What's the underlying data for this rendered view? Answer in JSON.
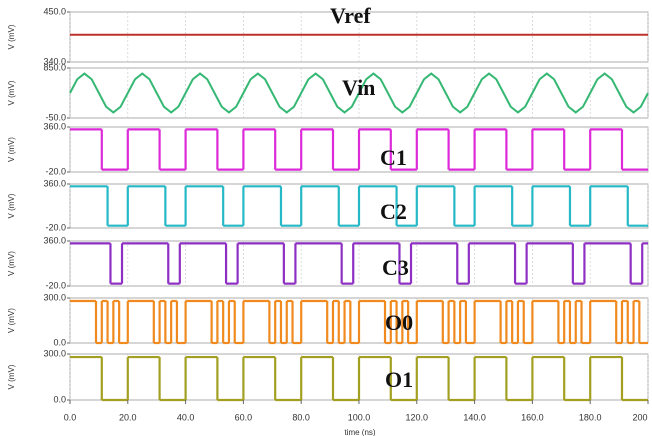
{
  "chart_data": [
    {
      "type": "line",
      "title": "Vref",
      "ylabel": "V (mV)",
      "color": "#c0302a",
      "x": [
        0,
        200
      ],
      "values": [
        400,
        400
      ],
      "xlim": [
        0,
        200
      ],
      "ylim": [
        340,
        450
      ],
      "yticks": [
        {
          "value": 340,
          "label": "340.0"
        },
        {
          "value": 450,
          "label": "450.0"
        }
      ],
      "grid": true
    },
    {
      "type": "line",
      "title": "Vin",
      "ylabel": "V (mV)",
      "color": "#35b873",
      "x": [
        0,
        2.5,
        5,
        7.5,
        10,
        12.5,
        15,
        17.5,
        20,
        22.5,
        25,
        27.5,
        30,
        32.5,
        35,
        37.5,
        40,
        42.5,
        45,
        47.5,
        50,
        52.5,
        55,
        57.5,
        60,
        62.5,
        65,
        67.5,
        70,
        72.5,
        75,
        77.5,
        80,
        82.5,
        85,
        87.5,
        90,
        92.5,
        95,
        97.5,
        100,
        102.5,
        105,
        107.5,
        110,
        112.5,
        115,
        117.5,
        120,
        122.5,
        125,
        127.5,
        130,
        132.5,
        135,
        137.5,
        140,
        142.5,
        145,
        147.5,
        150,
        152.5,
        155,
        157.5,
        160,
        162.5,
        165,
        167.5,
        170,
        172.5,
        175,
        177.5,
        180,
        182.5,
        185,
        187.5,
        190,
        192.5,
        195,
        197.5,
        200
      ],
      "values": [
        400,
        647,
        750,
        647,
        400,
        153,
        50,
        153,
        400,
        647,
        750,
        647,
        400,
        153,
        50,
        153,
        400,
        647,
        750,
        647,
        400,
        153,
        50,
        153,
        400,
        647,
        750,
        647,
        400,
        153,
        50,
        153,
        400,
        647,
        750,
        647,
        400,
        153,
        50,
        153,
        400,
        647,
        750,
        647,
        400,
        153,
        50,
        153,
        400,
        647,
        750,
        647,
        400,
        153,
        50,
        153,
        400,
        647,
        750,
        647,
        400,
        153,
        50,
        153,
        400,
        647,
        750,
        647,
        400,
        153,
        50,
        153,
        400,
        647,
        750,
        647,
        400,
        153,
        50,
        153,
        400
      ],
      "xlim": [
        0,
        200
      ],
      "ylim": [
        -50,
        850
      ],
      "yticks": [
        {
          "value": -50,
          "label": "-50.0"
        },
        {
          "value": 850,
          "label": "850.0"
        }
      ],
      "grid": true
    },
    {
      "type": "step",
      "title": "C1",
      "ylabel": "V (mV)",
      "color": "#dc2ad8",
      "x": [
        0,
        11,
        20,
        31,
        40,
        51,
        60,
        71,
        80,
        91,
        100,
        111,
        120,
        131,
        140,
        151,
        160,
        171,
        180,
        191
      ],
      "values": [
        340,
        0,
        340,
        0,
        340,
        0,
        340,
        0,
        340,
        0,
        340,
        0,
        340,
        0,
        340,
        0,
        340,
        0,
        340,
        0
      ],
      "xlim": [
        0,
        200
      ],
      "ylim": [
        -20,
        360
      ],
      "yticks": [
        {
          "value": -20,
          "label": "-20.0"
        },
        {
          "value": 360,
          "label": "360.0"
        }
      ],
      "grid": true
    },
    {
      "type": "step",
      "title": "C2",
      "ylabel": "V (mV)",
      "color": "#25b8c6",
      "x": [
        0,
        13,
        20,
        33,
        40,
        53,
        60,
        73,
        80,
        93,
        100,
        113,
        120,
        133,
        140,
        153,
        160,
        173,
        180,
        193
      ],
      "values": [
        340,
        0,
        340,
        0,
        340,
        0,
        340,
        0,
        340,
        0,
        340,
        0,
        340,
        0,
        340,
        0,
        340,
        0,
        340,
        0
      ],
      "xlim": [
        0,
        200
      ],
      "ylim": [
        -20,
        360
      ],
      "yticks": [
        {
          "value": -20,
          "label": "-20.0"
        },
        {
          "value": 360,
          "label": "360.0"
        }
      ],
      "grid": true
    },
    {
      "type": "step",
      "title": "C3",
      "ylabel": "V (mV)",
      "color": "#8e2fc4",
      "x": [
        0,
        14,
        18,
        34,
        38,
        54,
        58,
        74,
        78,
        94,
        98,
        114,
        118,
        134,
        138,
        154,
        158,
        174,
        178,
        194,
        198
      ],
      "values": [
        340,
        0,
        340,
        0,
        340,
        0,
        340,
        0,
        340,
        0,
        340,
        0,
        340,
        0,
        340,
        0,
        340,
        0,
        340,
        0,
        340
      ],
      "xlim": [
        0,
        200
      ],
      "ylim": [
        -20,
        360
      ],
      "yticks": [
        {
          "value": -20,
          "label": "-20.0"
        },
        {
          "value": 360,
          "label": "360.0"
        }
      ],
      "grid": true
    },
    {
      "type": "step",
      "title": "O0",
      "ylabel": "V (mV)",
      "color": "#f08a1e",
      "x": [
        0,
        9,
        11,
        13,
        15,
        17,
        20,
        29,
        31,
        33,
        35,
        37,
        40,
        49,
        51,
        53,
        55,
        57,
        60,
        69,
        71,
        73,
        75,
        77,
        80,
        89,
        91,
        93,
        95,
        97,
        100,
        109,
        111,
        113,
        115,
        117,
        120,
        129,
        131,
        133,
        135,
        137,
        140,
        149,
        151,
        153,
        155,
        157,
        160,
        169,
        171,
        173,
        175,
        177,
        180,
        189,
        191,
        193,
        195,
        197
      ],
      "values": [
        280,
        0,
        280,
        0,
        280,
        0,
        280,
        0,
        280,
        0,
        280,
        0,
        280,
        0,
        280,
        0,
        280,
        0,
        280,
        0,
        280,
        0,
        280,
        0,
        280,
        0,
        280,
        0,
        280,
        0,
        280,
        0,
        280,
        0,
        280,
        0,
        280,
        0,
        280,
        0,
        280,
        0,
        280,
        0,
        280,
        0,
        280,
        0,
        280,
        0,
        280,
        0,
        280,
        0,
        280,
        0,
        280,
        0,
        280,
        0
      ],
      "xlim": [
        0,
        200
      ],
      "ylim": [
        0,
        300
      ],
      "yticks": [
        {
          "value": 0,
          "label": "0.0"
        },
        {
          "value": 300,
          "label": "300.0"
        }
      ],
      "grid": true
    },
    {
      "type": "step",
      "title": "O1",
      "ylabel": "V (mV)",
      "color": "#a3a021",
      "x": [
        0,
        11,
        20,
        31,
        40,
        51,
        60,
        71,
        80,
        91,
        100,
        111,
        120,
        131,
        140,
        151,
        160,
        171,
        180,
        191
      ],
      "values": [
        280,
        0,
        280,
        0,
        280,
        0,
        280,
        0,
        280,
        0,
        280,
        0,
        280,
        0,
        280,
        0,
        280,
        0,
        280,
        0
      ],
      "xlim": [
        0,
        200
      ],
      "ylim": [
        0,
        300
      ],
      "yticks": [
        {
          "value": 0,
          "label": "0.0"
        },
        {
          "value": 300,
          "label": "300.0"
        }
      ],
      "grid": true,
      "xlabel": "time (ns)",
      "xticks": [
        {
          "value": 0,
          "label": "0.0"
        },
        {
          "value": 20,
          "label": "20.0"
        },
        {
          "value": 40,
          "label": "40.0"
        },
        {
          "value": 60,
          "label": "60.0"
        },
        {
          "value": 80,
          "label": "80.0"
        },
        {
          "value": 100,
          "label": "100.0"
        },
        {
          "value": 120,
          "label": "120.0"
        },
        {
          "value": 140,
          "label": "140.0"
        },
        {
          "value": 160,
          "label": "160.0"
        },
        {
          "value": 180,
          "label": "180.0"
        },
        200
      ]
    }
  ]
}
